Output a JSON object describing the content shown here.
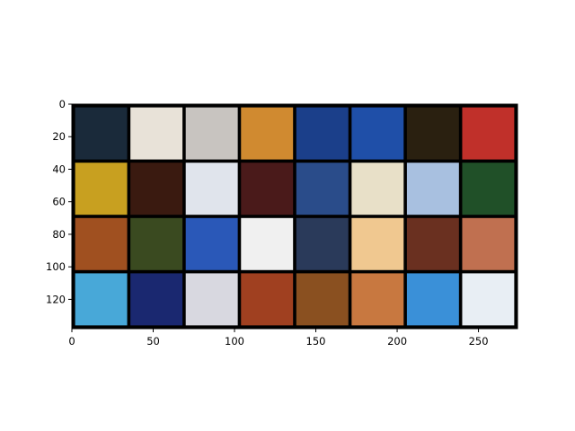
{
  "chart_data": {
    "type": "heatmap",
    "description_of_content": "image grid",
    "title": "",
    "xlabel": "",
    "ylabel": "",
    "xlim": [
      0,
      274
    ],
    "ylim": [
      138,
      0
    ],
    "grid": false,
    "xticks": [
      0,
      50,
      100,
      150,
      200,
      250
    ],
    "yticks": [
      0,
      20,
      40,
      60,
      80,
      100,
      120
    ],
    "tiles": {
      "rows": 4,
      "cols": 8,
      "tile_size": 32,
      "padding": 2,
      "grid_colors": [
        [
          "#1a2a3a",
          "#e8e2d8",
          "#c8c4c0",
          "#d08a30",
          "#1b3f8a",
          "#1f4fa8",
          "#2a2010",
          "#c0302a"
        ],
        [
          "#c8a020",
          "#3a1a10",
          "#e0e4ec",
          "#4a1a1a",
          "#2a4c8a",
          "#e8e0c8",
          "#a8c0e0",
          "#205028"
        ],
        [
          "#a05020",
          "#3a4a20",
          "#2a58b8",
          "#f0f0f0",
          "#2a3a5a",
          "#f0c890",
          "#6a3020",
          "#c07050"
        ],
        [
          "#48a8d8",
          "#1a2870",
          "#d8d8e0",
          "#a04020",
          "#8a5020",
          "#c87840",
          "#3a90d8",
          "#e8eef4"
        ]
      ]
    }
  }
}
